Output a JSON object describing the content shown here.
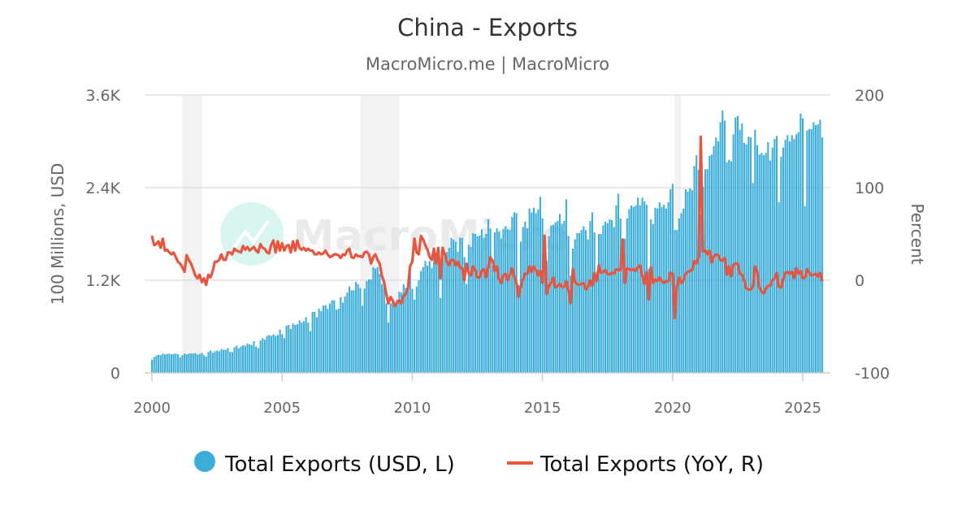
{
  "chart_data": {
    "type": "bar+line",
    "title": "China - Exports",
    "subtitle": "MacroMicro.me | MacroMicro",
    "watermark": "MacroMicro",
    "ylabel_left": "100 Millions, USD",
    "ylabel_right": "Percent",
    "ylim_left": [
      0,
      3600
    ],
    "ylim_right": [
      -100,
      200
    ],
    "yticks_left": [
      "0",
      "1.2K",
      "2.4K",
      "3.6K"
    ],
    "yticks_right": [
      "-100",
      "0",
      "100",
      "200"
    ],
    "xticks": [
      "2000",
      "2005",
      "2010",
      "2015",
      "2020",
      "2025"
    ],
    "grid": true,
    "legend_position": "bottom",
    "start": "2000-01",
    "frequency": "monthly",
    "recession_bands": [
      [
        "2001-03",
        "2001-11"
      ],
      [
        "2008-01",
        "2009-06"
      ],
      [
        "2020-02",
        "2020-04"
      ]
    ],
    "colors": {
      "bars": "#3daed9",
      "line": "#e8553e",
      "band": "#f2f2f2"
    },
    "series": [
      {
        "name": "Total Exports (USD, L)",
        "type": "bar",
        "axis": "left",
        "values": [
          170,
          205,
          225,
          235,
          230,
          250,
          240,
          245,
          250,
          240,
          245,
          250,
          240,
          200,
          230,
          250,
          240,
          250,
          250,
          250,
          255,
          235,
          245,
          260,
          230,
          210,
          270,
          290,
          260,
          280,
          290,
          280,
          310,
          300,
          300,
          320,
          270,
          270,
          330,
          350,
          320,
          340,
          360,
          350,
          380,
          370,
          360,
          410,
          340,
          320,
          420,
          450,
          430,
          480,
          490,
          480,
          500,
          480,
          490,
          560,
          500,
          450,
          610,
          620,
          570,
          640,
          620,
          630,
          680,
          650,
          670,
          720,
          650,
          540,
          790,
          790,
          720,
          830,
          800,
          870,
          880,
          830,
          900,
          940,
          940,
          820,
          830,
          980,
          910,
          990,
          1040,
          1120,
          1070,
          1070,
          1180,
          1150,
          1100,
          870,
          1090,
          1190,
          1210,
          1210,
          1370,
          1350,
          1370,
          1280,
          1150,
          1110,
          900,
          650,
          900,
          920,
          890,
          950,
          1050,
          1040,
          1150,
          1100,
          1140,
          1310,
          1090,
          950,
          1120,
          1200,
          1320,
          1370,
          1450,
          1390,
          1450,
          1360,
          1530,
          1540,
          1510,
          970,
          1520,
          1550,
          1570,
          1620,
          1750,
          1730,
          1700,
          1570,
          1750,
          1750,
          1500,
          1150,
          1660,
          1630,
          1810,
          1800,
          1770,
          1780,
          1860,
          1750,
          1800,
          1990,
          1870,
          1390,
          1820,
          1870,
          1830,
          1740,
          1860,
          1900,
          1860,
          1850,
          2020,
          2080,
          2070,
          1140,
          1700,
          1890,
          1960,
          1870,
          2130,
          2080,
          2140,
          2070,
          2120,
          2280,
          2000,
          1690,
          1450,
          1770,
          1910,
          1920,
          1950,
          1970,
          2060,
          1930,
          1970,
          2250,
          1770,
          1260,
          1610,
          1730,
          1810,
          1810,
          1850,
          1900,
          1850,
          1730,
          1970,
          2080,
          1820,
          1200,
          1800,
          1800,
          1910,
          1960,
          1940,
          1990,
          1980,
          1890,
          2170,
          2320,
          2000,
          1720,
          1740,
          2000,
          2120,
          2170,
          2150,
          2170,
          2270,
          2170,
          2270,
          2220,
          2180,
          1350,
          1990,
          1930,
          2140,
          2130,
          2210,
          2150,
          2180,
          2130,
          2210,
          2380,
          2450,
          1850,
          1850,
          2000,
          2070,
          2130,
          2380,
          2350,
          2390,
          2370,
          2680,
          2820,
          2630,
          2050,
          2410,
          2640,
          2640,
          2810,
          2830,
          2940,
          3050,
          3000,
          3250,
          3400,
          3270,
          2730,
          2760,
          2740,
          3090,
          3310,
          3330,
          3150,
          3230,
          2980,
          2960,
          3060,
          3050,
          2460,
          3150,
          2950,
          2830,
          2850,
          2820,
          2850,
          2990,
          2750,
          2920,
          3030,
          3070,
          2210,
          2800,
          2920,
          3020,
          3080,
          3000,
          3080,
          3030,
          3090,
          3120,
          3360,
          3300,
          2160,
          3140,
          3160,
          3160,
          3250,
          3210,
          3220,
          3280,
          3050
        ]
      },
      {
        "name": "Total Exports (YoY, R)",
        "type": "line",
        "axis": "right",
        "values": [
          48,
          38,
          39,
          42,
          35,
          45,
          32,
          33,
          30,
          28,
          30,
          25,
          20,
          18,
          14,
          9,
          27,
          22,
          18,
          12,
          5,
          2,
          6,
          -2,
          2,
          -5,
          6,
          3,
          10,
          20,
          20,
          22,
          28,
          22,
          22,
          30,
          30,
          28,
          34,
          32,
          31,
          30,
          37,
          33,
          36,
          32,
          34,
          36,
          32,
          30,
          39,
          35,
          34,
          30,
          29,
          38,
          43,
          30,
          42,
          32,
          40,
          32,
          37,
          38,
          30,
          42,
          32,
          43,
          35,
          33,
          35,
          32,
          34,
          32,
          32,
          28,
          28,
          30,
          28,
          29,
          32,
          28,
          25,
          26,
          28,
          28,
          27,
          24,
          28,
          27,
          32,
          34,
          25,
          24,
          28,
          26,
          26,
          25,
          30,
          31,
          28,
          18,
          25,
          28,
          22,
          18,
          5,
          -2,
          -15,
          -25,
          -18,
          -22,
          -28,
          -24,
          -22,
          -25,
          -17,
          -15,
          -8,
          15,
          20,
          45,
          30,
          28,
          48,
          44,
          38,
          33,
          25,
          22,
          34,
          18,
          35,
          2,
          35,
          28,
          20,
          16,
          22,
          22,
          16,
          20,
          14,
          13,
          0,
          18,
          8,
          5,
          15,
          11,
          3,
          3,
          10,
          12,
          3,
          14,
          25,
          21,
          10,
          15,
          1,
          -3,
          5,
          7,
          0,
          6,
          13,
          4,
          -3,
          -18,
          -7,
          1,
          7,
          7,
          15,
          9,
          15,
          11,
          5,
          10,
          -3,
          48,
          -15,
          -6,
          -3,
          3,
          -8,
          -6,
          -4,
          -7,
          -7,
          -1,
          -11,
          -25,
          12,
          -2,
          -4,
          -5,
          -4,
          -3,
          -10,
          -7,
          0,
          -6,
          8,
          -1,
          16,
          8,
          9,
          11,
          7,
          6,
          8,
          7,
          12,
          11,
          11,
          44,
          -3,
          13,
          12,
          11,
          12,
          10,
          14,
          16,
          5,
          -4,
          9,
          -21,
          14,
          -3,
          1,
          -1,
          3,
          -1,
          -3,
          -1,
          -1,
          8,
          7,
          -41,
          -7,
          3,
          -3,
          0,
          7,
          9,
          10,
          11,
          21,
          18,
          24,
          155,
          31,
          32,
          28,
          32,
          19,
          26,
          28,
          27,
          22,
          21,
          24,
          6,
          15,
          4,
          17,
          18,
          18,
          7,
          6,
          0,
          -9,
          -10,
          -10,
          -7,
          15,
          9,
          -8,
          -12,
          -14,
          -9,
          -6,
          -6,
          0,
          2,
          8,
          -7,
          -8,
          1,
          8,
          9,
          7,
          9,
          2,
          13,
          7,
          10,
          2,
          3,
          12,
          8,
          5,
          6,
          7,
          4,
          8,
          -1
        ]
      }
    ]
  }
}
